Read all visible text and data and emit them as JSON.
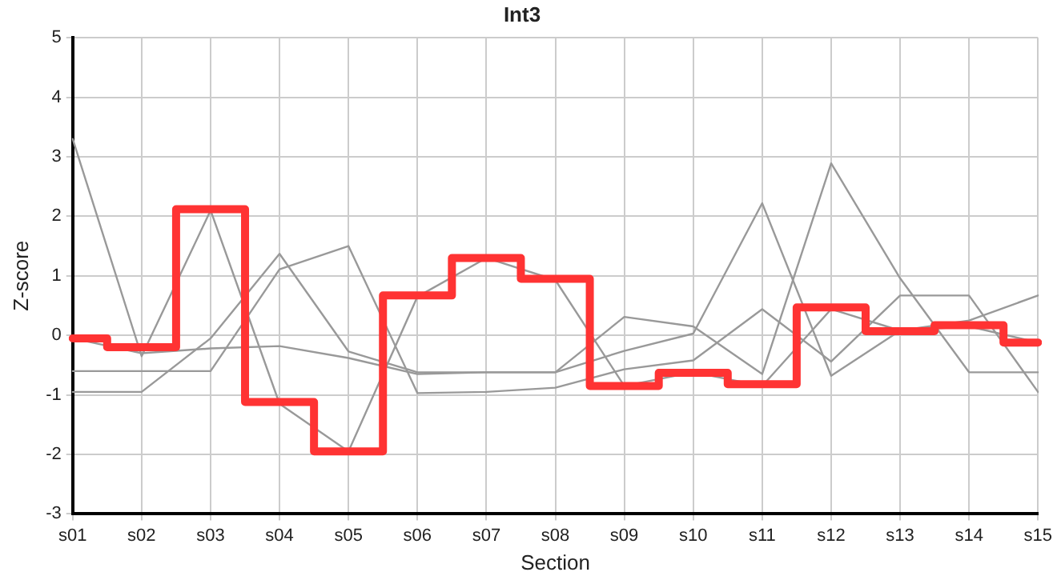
{
  "chart_data": {
    "type": "line",
    "title": "Int3",
    "xlabel": "Section",
    "ylabel": "Z-score",
    "categories": [
      "s01",
      "s02",
      "s03",
      "s04",
      "s05",
      "s06",
      "s07",
      "s08",
      "s09",
      "s10",
      "s11",
      "s12",
      "s13",
      "s14",
      "s15"
    ],
    "ylim": [
      -3,
      5
    ],
    "yticks": [
      -3,
      -2,
      -1,
      0,
      1,
      2,
      3,
      4,
      5
    ],
    "grid": true,
    "legend": false,
    "marker": "none",
    "series": [
      {
        "type": "line",
        "color": "#999999",
        "values": [
          3.3,
          -0.35,
          2.1,
          -1.15,
          -1.95,
          0.65,
          1.3,
          0.93,
          -0.85,
          -0.62,
          -0.85,
          0.44,
          0.08,
          0.15,
          -0.12
        ]
      },
      {
        "type": "line",
        "color": "#999999",
        "values": [
          -0.6,
          -0.6,
          -0.6,
          1.11,
          1.5,
          -0.97,
          -0.95,
          -0.88,
          -0.57,
          -0.42,
          0.44,
          -0.44,
          0.67,
          0.67,
          -0.95
        ]
      },
      {
        "type": "line",
        "color": "#999999",
        "values": [
          -0.95,
          -0.95,
          -0.05,
          1.37,
          -0.27,
          -0.62,
          -0.62,
          -0.62,
          0.31,
          0.15,
          -0.65,
          2.89,
          0.96,
          -0.62,
          -0.62
        ]
      },
      {
        "type": "line",
        "color": "#999999",
        "values": [
          -0.05,
          -0.3,
          -0.22,
          -0.18,
          -0.38,
          -0.65,
          -0.62,
          -0.62,
          -0.26,
          0.03,
          2.22,
          -0.68,
          0.08,
          0.25,
          0.67
        ]
      },
      {
        "type": "step",
        "color": "#ff3333",
        "values": [
          -0.05,
          -0.2,
          2.12,
          -1.12,
          -1.95,
          0.67,
          1.3,
          0.95,
          -0.85,
          -0.63,
          -0.82,
          0.47,
          0.07,
          0.17,
          -0.12
        ]
      }
    ]
  }
}
